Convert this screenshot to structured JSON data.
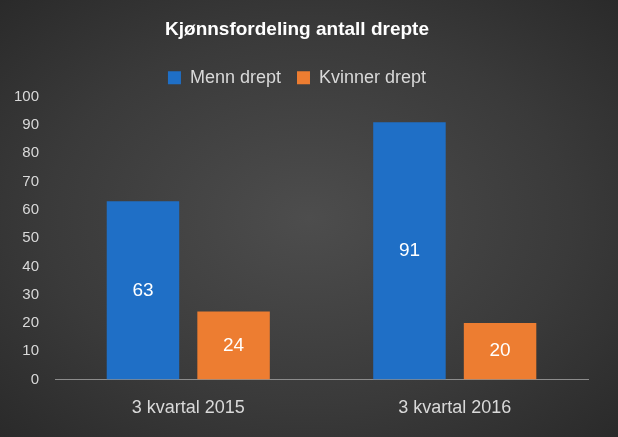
{
  "chart_data": {
    "type": "bar",
    "title": "Kjønnsfordeling antall drepte",
    "categories": [
      "3 kvartal 2015",
      "3 kvartal 2016"
    ],
    "series": [
      {
        "name": "Menn drept",
        "color": "#1f6fc6",
        "values": [
          63,
          91
        ]
      },
      {
        "name": "Kvinner drept",
        "color": "#ed7d31",
        "values": [
          24,
          20
        ]
      }
    ],
    "ylim": [
      0,
      100
    ],
    "yticks": [
      0,
      10,
      20,
      30,
      40,
      50,
      60,
      70,
      80,
      90,
      100
    ],
    "grid": false,
    "legend": "top",
    "data_labels": true
  }
}
